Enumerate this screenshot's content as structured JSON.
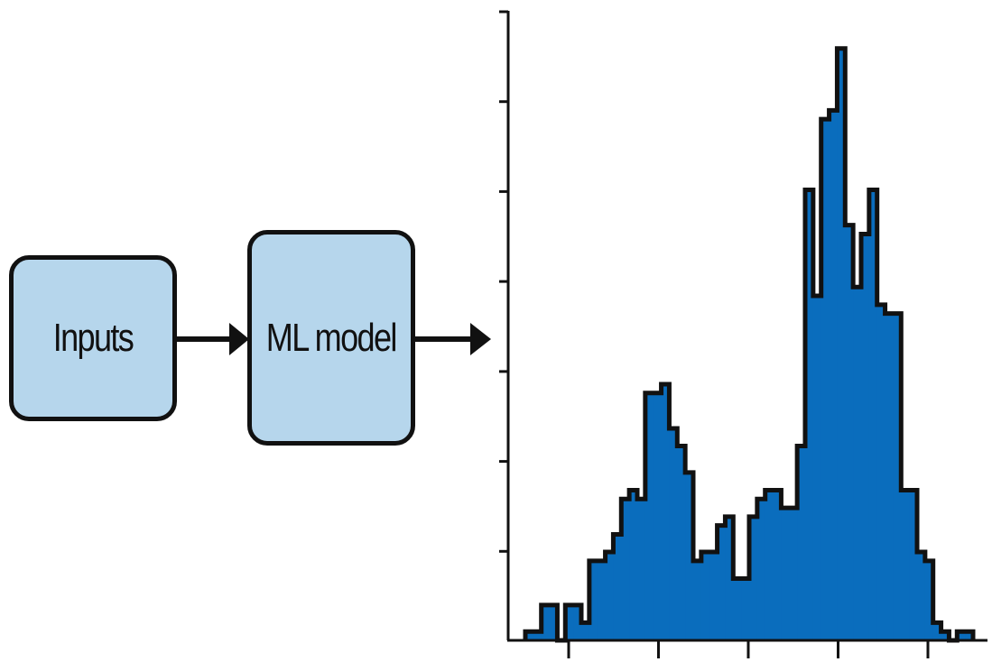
{
  "diagram": {
    "input_label": "Inputs",
    "model_label": "ML model",
    "colors": {
      "box_fill": "#b6d6ec",
      "stroke": "#111111",
      "bar_fill": "#0a6dbd"
    }
  },
  "chart_data": {
    "type": "bar",
    "subtype": "histogram",
    "title": "",
    "xlabel": "",
    "ylabel": "",
    "x_tick_count": 5,
    "y_tick_count": 7,
    "ylim": [
      0,
      68
    ],
    "values": [
      1,
      1,
      4,
      4,
      0,
      4,
      4,
      2,
      9,
      9,
      10,
      12,
      16,
      17,
      16,
      28,
      28,
      29,
      24,
      22,
      19,
      9,
      10,
      10,
      13,
      14,
      7,
      7,
      14,
      16,
      17,
      17,
      15,
      15,
      22,
      51,
      39,
      59,
      60,
      67,
      47,
      40,
      46,
      51,
      38,
      37,
      37,
      17,
      17,
      10,
      9,
      2,
      1,
      0,
      1,
      1
    ]
  }
}
